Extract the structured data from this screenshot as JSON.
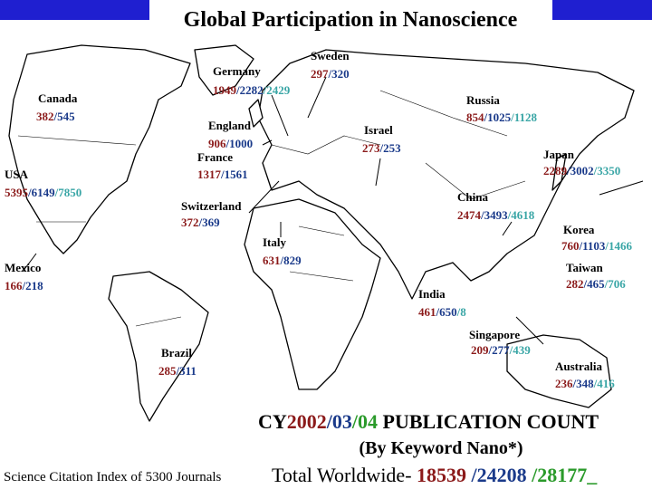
{
  "header": {
    "title": "Global Participation in Nanoscience"
  },
  "count_colors": [
    "#8b1a1a",
    "#1a3a8a",
    "#3aa6a6"
  ],
  "labels": [
    {
      "name": "Canada",
      "counts": [
        "382",
        "/545"
      ]
    },
    {
      "name": "USA",
      "counts": [
        "5395",
        "/6149",
        "/7850"
      ]
    },
    {
      "name": "Mexico",
      "counts": [
        "166",
        "/218"
      ]
    },
    {
      "name": "Germany",
      "counts": [
        "1949",
        "/2282",
        "/2429"
      ]
    },
    {
      "name": "Sweden",
      "counts": [
        "297",
        "/320"
      ]
    },
    {
      "name": "England",
      "counts": [
        "906",
        "/1000"
      ]
    },
    {
      "name": "France",
      "counts": [
        "1317",
        "/1561"
      ]
    },
    {
      "name": "Switzerland",
      "counts": [
        "372",
        "/369"
      ]
    },
    {
      "name": "Italy",
      "counts": [
        "631",
        "/829"
      ]
    },
    {
      "name": "Israel",
      "counts": [
        "273",
        "/253"
      ]
    },
    {
      "name": "Russia",
      "counts": [
        "854",
        "/1025",
        "/1128"
      ]
    },
    {
      "name": "Japan",
      "counts": [
        "2289",
        "/3002",
        "/3350"
      ]
    },
    {
      "name": "China",
      "counts": [
        "2474",
        "/3493",
        "/4618"
      ]
    },
    {
      "name": "Korea",
      "counts": [
        "760",
        "/1103",
        "/1466"
      ]
    },
    {
      "name": "Taiwan",
      "counts": [
        "282",
        "/465",
        "/706"
      ]
    },
    {
      "name": "India",
      "counts": [
        "461",
        "/650",
        "/8"
      ]
    },
    {
      "name": "Singapore",
      "counts": [
        "209",
        "/277",
        "/439"
      ]
    },
    {
      "name": "Brazil",
      "counts": [
        "285",
        "/311"
      ]
    },
    {
      "name": "Australia",
      "counts": [
        "236",
        "/348",
        "/416"
      ]
    }
  ],
  "footer": {
    "headline": [
      {
        "text": "CY",
        "color": "#000000"
      },
      {
        "text": "2002",
        "color": "#8b1a1a"
      },
      {
        "text": "/03",
        "color": "#1a3a8a"
      },
      {
        "text": "/04",
        "color": "#2a9a2a"
      },
      {
        "text": " PUBLICATION COUNT",
        "color": "#000000"
      }
    ],
    "subheadline": "(By Keyword Nano*)",
    "source": "Science Citation Index of 5300 Journals",
    "total": [
      {
        "text": "Total Worldwide- ",
        "color": "#000000"
      },
      {
        "text": "18539",
        "color": "#8b1a1a"
      },
      {
        "text": " /24208",
        "color": "#1a3a8a"
      },
      {
        "text": " /28177_",
        "color": "#2a9a2a"
      }
    ]
  }
}
